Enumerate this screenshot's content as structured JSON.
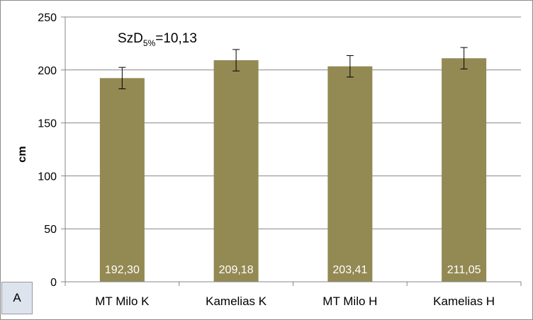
{
  "chart_data": {
    "type": "bar",
    "categories": [
      "MT Milo K",
      "Kamelias K",
      "MT Milo H",
      "Kamelias H"
    ],
    "values": [
      192.3,
      209.18,
      203.41,
      211.05
    ],
    "value_labels": [
      "192,30",
      "209,18",
      "203,41",
      "211,05"
    ],
    "error": 10.13,
    "ylabel": "cm",
    "ylim": [
      0,
      250
    ],
    "yticks": [
      0,
      50,
      100,
      150,
      200,
      250
    ],
    "grid": true,
    "bar_color": "#938953",
    "annotation": {
      "prefix": "SzD",
      "subscript": "5%",
      "suffix": "=10,13"
    }
  },
  "panel_label": "A"
}
